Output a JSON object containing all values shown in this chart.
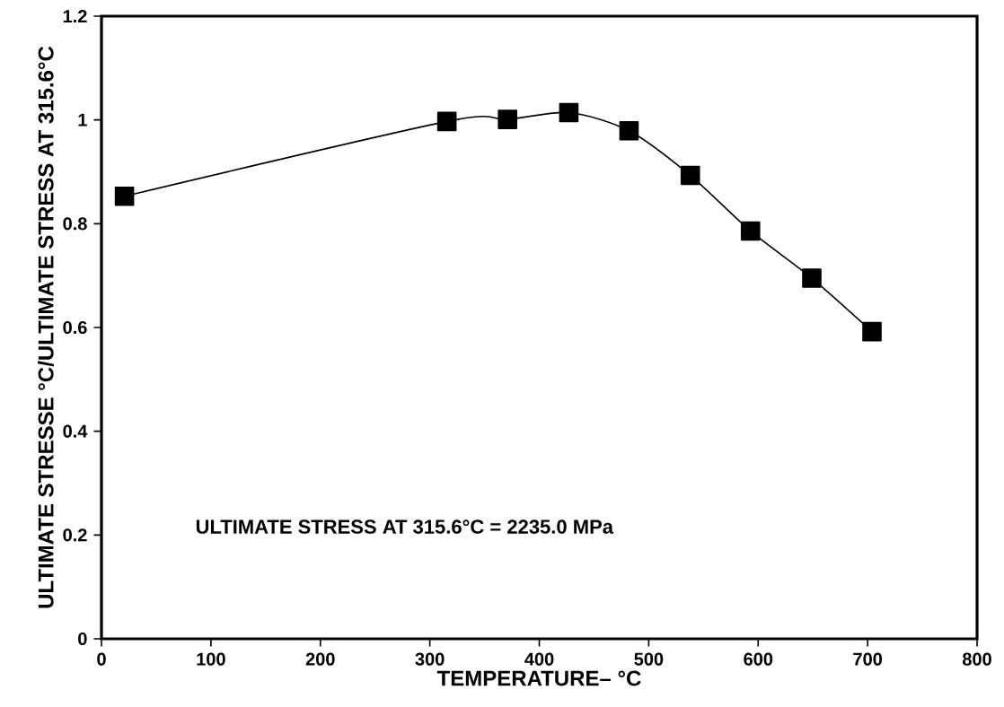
{
  "chart_data": {
    "type": "line",
    "xlabel": "TEMPERATURE– °C",
    "ylabel": "ULTIMATE STRESSE   °C/ULTIMATE STRESS AT 315.6°C",
    "x": [
      21,
      315.6,
      371,
      427,
      482,
      538,
      593,
      649,
      704
    ],
    "series": [
      {
        "color": "#000000",
        "values": [
          0.853,
          0.997,
          1.001,
          1.014,
          0.979,
          0.893,
          0.786,
          0.695,
          0.592
        ]
      }
    ],
    "xlim": [
      0,
      800
    ],
    "ylim": [
      0,
      1.2
    ],
    "xticks": [
      0,
      100,
      200,
      300,
      400,
      500,
      600,
      700,
      800
    ],
    "yticks": [
      0,
      0.2,
      0.4,
      0.6,
      0.8,
      1,
      1.2
    ],
    "annotations": [
      "ULTIMATE STRESS AT 315.6°C = 2235.0 MPa"
    ],
    "marker": "square",
    "line_style": "solid",
    "grid": false
  }
}
